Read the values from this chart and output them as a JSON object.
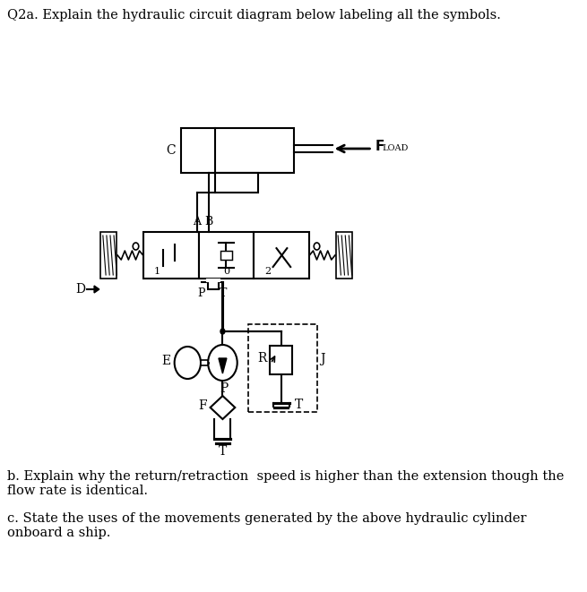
{
  "title_q2a": "Q2a. Explain the hydraulic circuit diagram below labeling all the symbols.",
  "text_b": "b. Explain why the return/retraction  speed is higher than the extension though the\nflow rate is identical.",
  "text_c": "c. State the uses of the movements generated by the above hydraulic cylinder\nonboard a ship.",
  "bg_color": "#ffffff",
  "line_color": "#000000",
  "fig_width": 6.55,
  "fig_height": 6.61,
  "dpi": 100
}
